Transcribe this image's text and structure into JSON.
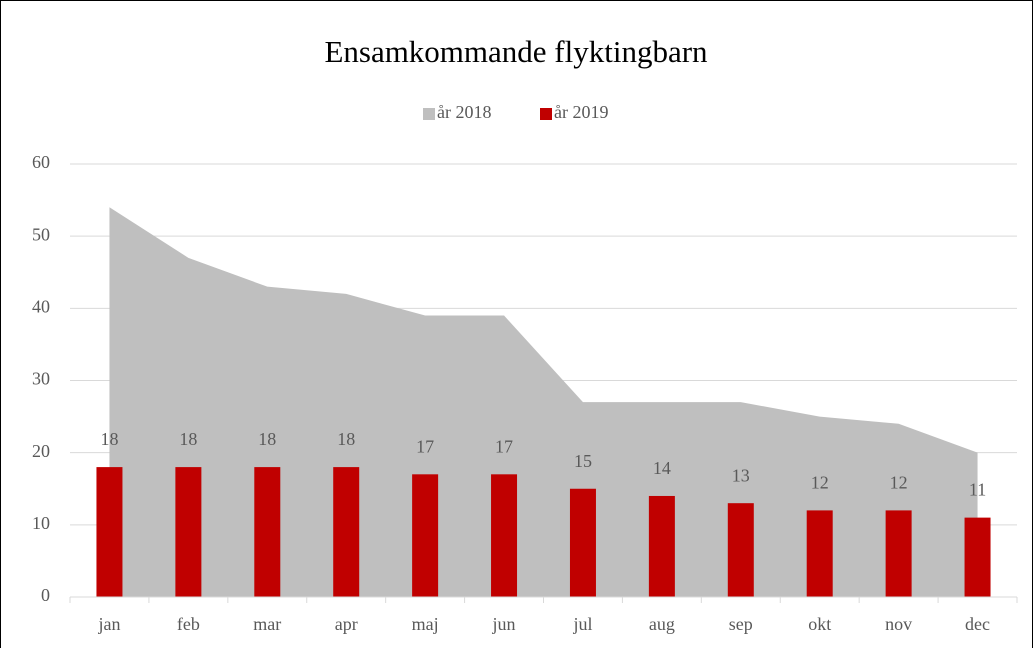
{
  "chart_data": {
    "type": "combo",
    "title": "Ensamkommande flyktingbarn",
    "categories": [
      "jan",
      "feb",
      "mar",
      "apr",
      "maj",
      "jun",
      "jul",
      "aug",
      "sep",
      "okt",
      "nov",
      "dec"
    ],
    "series": [
      {
        "name": "år 2018",
        "type": "area",
        "color": "#bfbfbf",
        "values": [
          54,
          47,
          43,
          42,
          39,
          39,
          27,
          27,
          27,
          25,
          24,
          20
        ]
      },
      {
        "name": "år 2019",
        "type": "bar",
        "color": "#c00000",
        "values": [
          18,
          18,
          18,
          18,
          17,
          17,
          15,
          14,
          13,
          12,
          12,
          11
        ]
      }
    ],
    "ylim": [
      0,
      60
    ],
    "yticks": [
      0,
      10,
      20,
      30,
      40,
      50,
      60
    ],
    "grid": true,
    "legend": "top"
  }
}
